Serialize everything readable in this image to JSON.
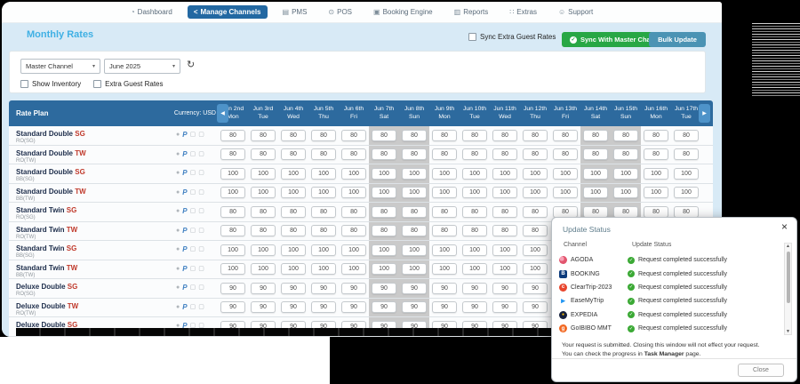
{
  "nav": {
    "items": [
      {
        "label": "Dashboard",
        "icon": "dashboard-icon",
        "active": false
      },
      {
        "label": "Manage Channels",
        "icon": "share-icon",
        "active": true
      },
      {
        "label": "PMS",
        "icon": "building-icon",
        "active": false
      },
      {
        "label": "POS",
        "icon": "pos-icon",
        "active": false
      },
      {
        "label": "Booking Engine",
        "icon": "calendar-icon",
        "active": false
      },
      {
        "label": "Reports",
        "icon": "report-icon",
        "active": false
      },
      {
        "label": "Extras",
        "icon": "grid-icon",
        "active": false
      },
      {
        "label": "Support",
        "icon": "person-icon",
        "active": false
      }
    ]
  },
  "page": {
    "title": "Monthly Rates",
    "sync_extra_label": "Sync Extra Guest Rates",
    "sync_master_button": "Sync With Master Channel",
    "bulk_update_button": "Bulk Update"
  },
  "filters": {
    "channel_selected": "Master Channel",
    "month_selected": "June 2025",
    "show_inventory_label": "Show Inventory",
    "extra_guest_label": "Extra Guest Rates",
    "refresh_icon": "refresh-icon"
  },
  "table": {
    "rate_plan_header": "Rate Plan",
    "currency_label": "Currency: USD",
    "columns": [
      {
        "date": "Jun 2nd",
        "day": "Mon",
        "weekend": false
      },
      {
        "date": "Jun 3rd",
        "day": "Tue",
        "weekend": false
      },
      {
        "date": "Jun 4th",
        "day": "Wed",
        "weekend": false
      },
      {
        "date": "Jun 5th",
        "day": "Thu",
        "weekend": false
      },
      {
        "date": "Jun 6th",
        "day": "Fri",
        "weekend": false
      },
      {
        "date": "Jun 7th",
        "day": "Sat",
        "weekend": true
      },
      {
        "date": "Jun 8th",
        "day": "Sun",
        "weekend": true
      },
      {
        "date": "Jun 9th",
        "day": "Mon",
        "weekend": false
      },
      {
        "date": "Jun 10th",
        "day": "Tue",
        "weekend": false
      },
      {
        "date": "Jun 11th",
        "day": "Wed",
        "weekend": false
      },
      {
        "date": "Jun 12th",
        "day": "Thu",
        "weekend": false
      },
      {
        "date": "Jun 13th",
        "day": "Fri",
        "weekend": false
      },
      {
        "date": "Jun 14th",
        "day": "Sat",
        "weekend": true
      },
      {
        "date": "Jun 15th",
        "day": "Sun",
        "weekend": true
      },
      {
        "date": "Jun 16th",
        "day": "Mon",
        "weekend": false
      },
      {
        "date": "Jun 17th",
        "day": "Tue",
        "weekend": false
      }
    ],
    "rows": [
      {
        "name": "Standard Double",
        "variant": "SG",
        "code": "RO(SG)",
        "rate": "80"
      },
      {
        "name": "Standard Double",
        "variant": "TW",
        "code": "RO(TW)",
        "rate": "80"
      },
      {
        "name": "Standard Double",
        "variant": "SG",
        "code": "BB(SG)",
        "rate": "100"
      },
      {
        "name": "Standard Double",
        "variant": "TW",
        "code": "BB(TW)",
        "rate": "100"
      },
      {
        "name": "Standard Twin",
        "variant": "SG",
        "code": "RO(SG)",
        "rate": "80"
      },
      {
        "name": "Standard Twin",
        "variant": "TW",
        "code": "RO(TW)",
        "rate": "80"
      },
      {
        "name": "Standard Twin",
        "variant": "SG",
        "code": "BB(SG)",
        "rate": "100"
      },
      {
        "name": "Standard Twin",
        "variant": "TW",
        "code": "BB(TW)",
        "rate": "100"
      },
      {
        "name": "Deluxe Double",
        "variant": "SG",
        "code": "RO(SG)",
        "rate": "90"
      },
      {
        "name": "Deluxe Double",
        "variant": "TW",
        "code": "RO(TW)",
        "rate": "90"
      },
      {
        "name": "Deluxe Double",
        "variant": "SG",
        "code": "RO(SG)",
        "rate": "90"
      }
    ],
    "row_icons": [
      "circle-icon",
      "rate-p-icon",
      "copy-icon",
      "clipboard-icon"
    ]
  },
  "modal": {
    "title": "Update Status",
    "channel_header": "Channel",
    "status_header": "Update Status",
    "rows": [
      {
        "channel": "AGODA",
        "icon": "agoda-icon",
        "icon_class": "agoda",
        "icon_text": "",
        "status": "Request completed successfully"
      },
      {
        "channel": "BOOKING",
        "icon": "booking-icon",
        "icon_class": "booking",
        "icon_text": "B",
        "status": "Request completed successfully"
      },
      {
        "channel": "ClearTrip-2023",
        "icon": "cleartrip-icon",
        "icon_class": "cleartrip",
        "icon_text": "c",
        "status": "Request completed successfully"
      },
      {
        "channel": "EaseMyTrip",
        "icon": "easemytrip-icon",
        "icon_class": "easemytrip",
        "icon_text": "▸",
        "status": "Request completed successfully"
      },
      {
        "channel": "EXPEDIA",
        "icon": "expedia-icon",
        "icon_class": "expedia",
        "icon_text": "●",
        "status": "Request completed successfully"
      },
      {
        "channel": "GoIBIBO MMT",
        "icon": "goibibo-icon",
        "icon_class": "goibibo",
        "icon_text": "g",
        "status": "Request completed successfully"
      }
    ],
    "note_line1": "Your request is submitted. Closing this window will not effect your request.",
    "note_line2_prefix": "You can check the progress in ",
    "note_line2_bold": "Task Manager",
    "note_line2_suffix": " page.",
    "close_button": "Close"
  },
  "colors": {
    "nav_active": "#2268a2",
    "title_blue": "#3fb0e4",
    "table_header_blue": "#2d6a9e",
    "green_button": "#28a745",
    "blue_button": "#4b93b4",
    "weekend_grey": "#cacaca",
    "variant_red": "#c0392b",
    "success_green": "#3ba935",
    "content_bg": "#d8eaf6"
  }
}
